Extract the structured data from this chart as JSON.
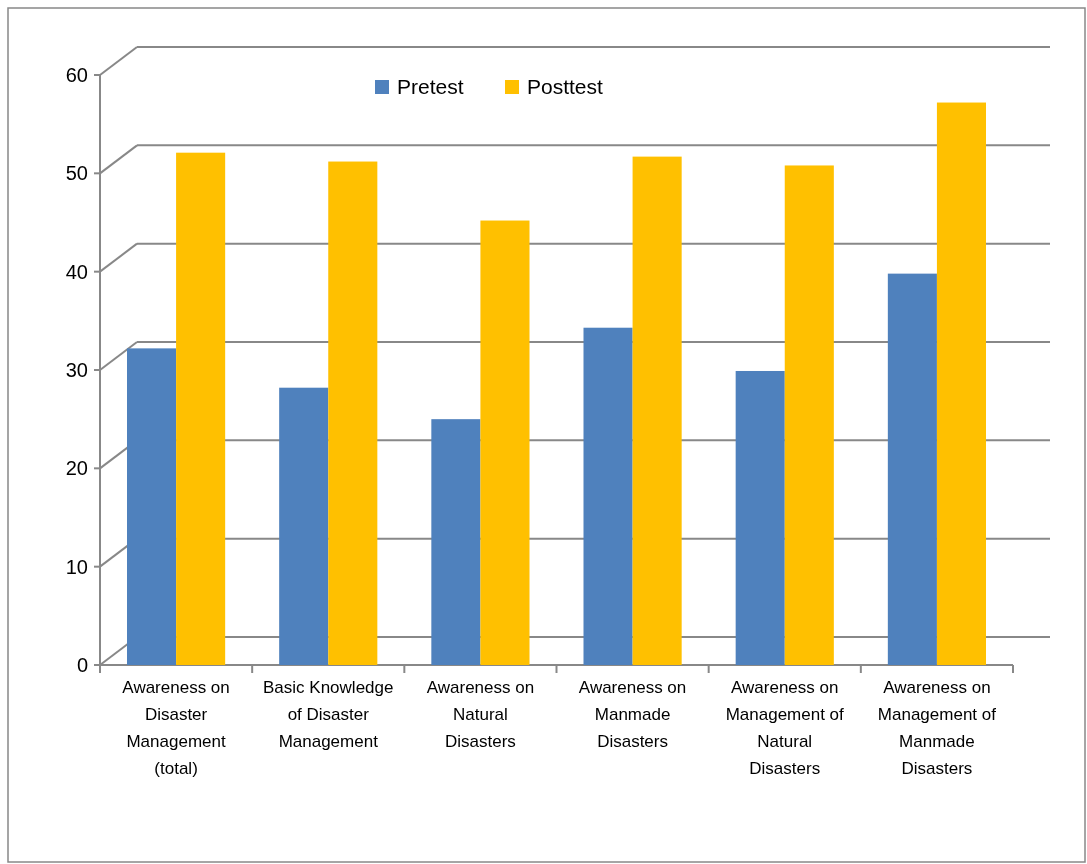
{
  "chart_data": {
    "type": "bar",
    "categories": [
      "Awareness on Disaster Management (total)",
      "Basic Knowledge of Disaster Management",
      "Awareness on Natural Disasters",
      "Awareness on Manmade Disasters",
      "Awareness on Management of Natural Disasters",
      "Awareness on Management of Manmade Disasters"
    ],
    "series": [
      {
        "name": "Pretest",
        "color": "#4f81bd",
        "values": [
          32.2,
          28.2,
          25,
          34.3,
          29.9,
          39.8
        ]
      },
      {
        "name": "Posttest",
        "color": "#ffc000",
        "values": [
          52.1,
          51.2,
          45.2,
          51.7,
          50.8,
          57.2
        ]
      }
    ],
    "ylim": [
      0,
      60
    ],
    "yticks": [
      0,
      10,
      20,
      30,
      40,
      50,
      60
    ],
    "grid": "y",
    "legend": "top"
  }
}
